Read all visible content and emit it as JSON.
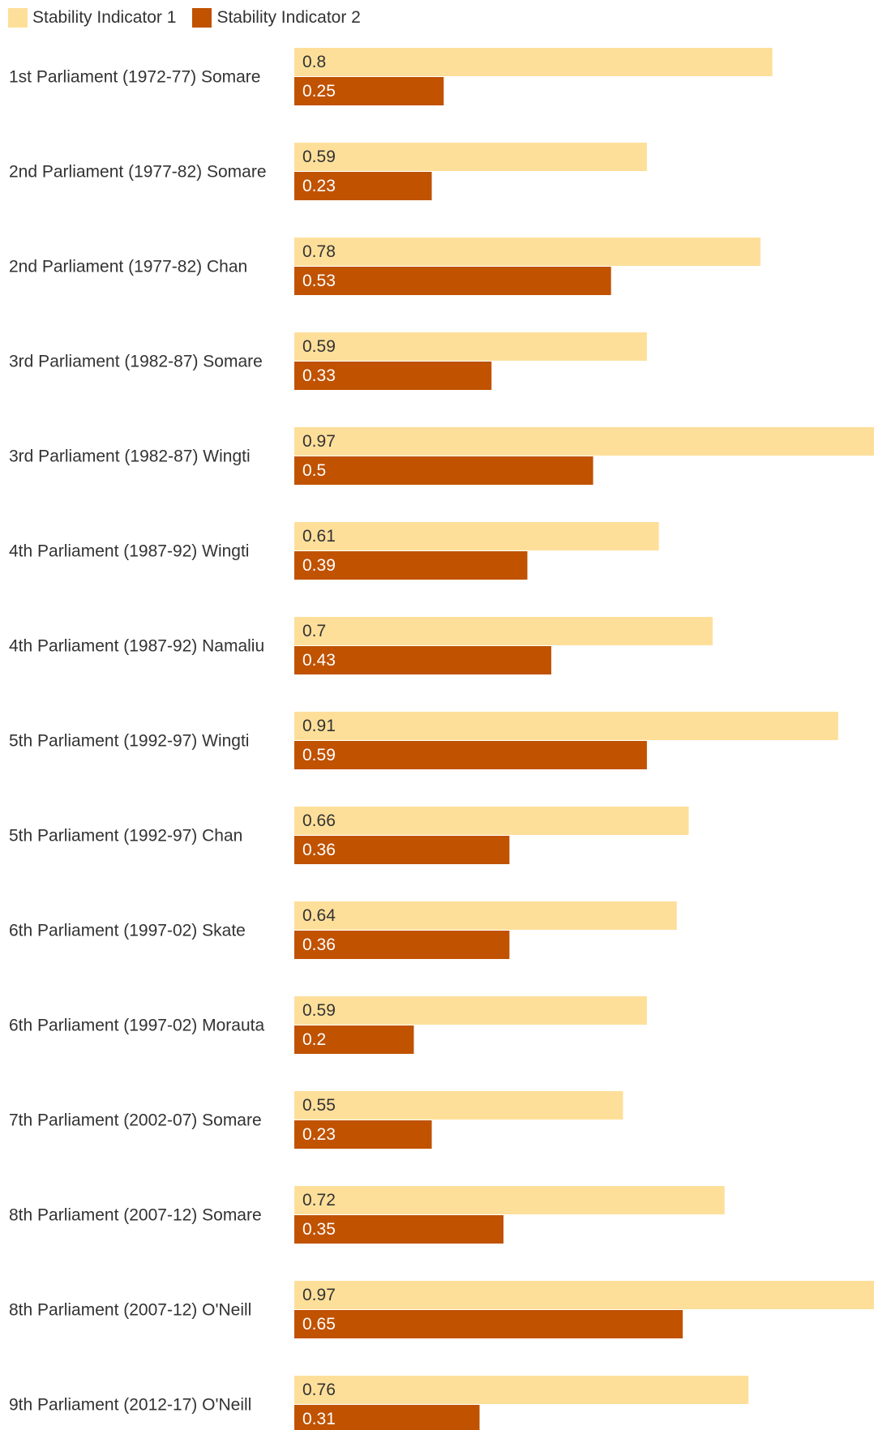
{
  "chart_data": {
    "type": "bar",
    "orientation": "horizontal",
    "categories": [
      "1st Parliament (1972-77) Somare",
      "2nd Parliament (1977-82) Somare",
      "2nd Parliament (1977-82) Chan",
      "3rd Parliament (1982-87) Somare",
      "3rd Parliament (1982-87) Wingti",
      "4th Parliament (1987-92) Wingti",
      "4th Parliament (1987-92) Namaliu",
      "5th Parliament (1992-97) Wingti",
      "5th Parliament (1992-97) Chan",
      "6th Parliament (1997-02) Skate",
      "6th Parliament (1997-02) Morauta",
      "7th Parliament (2002-07) Somare",
      "8th Parliament (2007-12) Somare",
      "8th Parliament (2007-12) O'Neill",
      "9th Parliament (2012-17) O'Neill"
    ],
    "series": [
      {
        "name": "Stability Indicator 1",
        "color": "#fedf9a",
        "label_color": "#333333",
        "values": [
          0.8,
          0.59,
          0.78,
          0.59,
          0.97,
          0.61,
          0.7,
          0.91,
          0.66,
          0.64,
          0.59,
          0.55,
          0.72,
          0.97,
          0.76
        ]
      },
      {
        "name": "Stability Indicator 2",
        "color": "#c05200",
        "label_color": "#ffffff",
        "values": [
          0.25,
          0.23,
          0.53,
          0.33,
          0.5,
          0.39,
          0.43,
          0.59,
          0.36,
          0.36,
          0.2,
          0.23,
          0.35,
          0.65,
          0.31
        ]
      }
    ],
    "xlim": [
      0,
      0.97
    ],
    "axis_visible": false,
    "grid": false,
    "legend": "top-left",
    "data_labels": "inside-left"
  }
}
